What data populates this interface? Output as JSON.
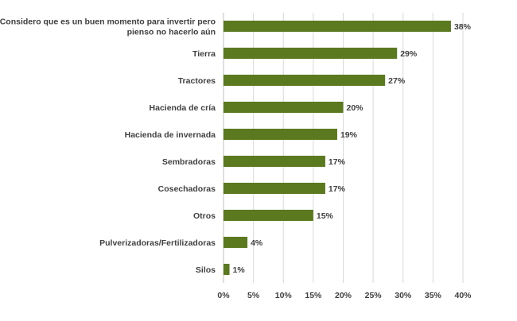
{
  "chart_data": {
    "type": "bar",
    "orientation": "horizontal",
    "categories": [
      "Considero que es un buen momento para invertir pero pienso no hacerlo aún",
      "Tierra",
      "Tractores",
      "Hacienda de cría",
      "Hacienda de invernada",
      "Sembradoras",
      "Cosechadoras",
      "Otros",
      "Pulverizadoras/Fertilizadoras",
      "Silos"
    ],
    "category_lines": [
      [
        "Considero que es un buen momento para invertir pero",
        "pienso no hacerlo aún"
      ],
      [
        "Tierra"
      ],
      [
        "Tractores"
      ],
      [
        "Hacienda de cría"
      ],
      [
        "Hacienda de invernada"
      ],
      [
        "Sembradoras"
      ],
      [
        "Cosechadoras"
      ],
      [
        "Otros"
      ],
      [
        "Pulverizadoras/Fertilizadoras"
      ],
      [
        "Silos"
      ]
    ],
    "values": [
      38,
      29,
      27,
      20,
      19,
      17,
      17,
      15,
      4,
      1
    ],
    "data_labels": [
      "38%",
      "29%",
      "27%",
      "20%",
      "19%",
      "17%",
      "17%",
      "15%",
      "4%",
      "1%"
    ],
    "xlim": [
      0,
      40
    ],
    "x_ticks": [
      0,
      5,
      10,
      15,
      20,
      25,
      30,
      35,
      40
    ],
    "x_tick_labels": [
      "0%",
      "5%",
      "10%",
      "15%",
      "20%",
      "25%",
      "30%",
      "35%",
      "40%"
    ],
    "grid": "vertical",
    "legend": "none",
    "title": "",
    "xlabel": "",
    "ylabel": "",
    "colors": {
      "bar": "#5b7a1f",
      "grid": "#d9d9d9",
      "text": "#404040"
    }
  }
}
